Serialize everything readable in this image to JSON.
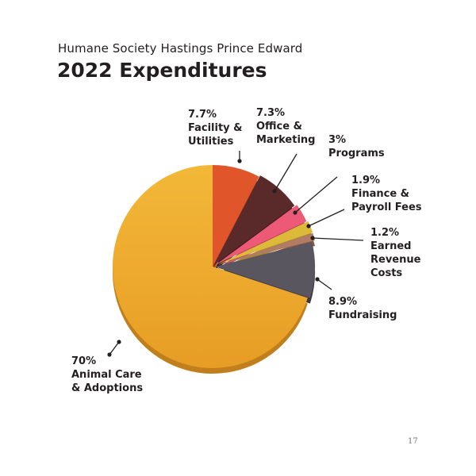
{
  "header": {
    "subtitle": "Humane Society Hastings Prince Edward",
    "title": "2022 Expenditures"
  },
  "page_number": "17",
  "chart_data": {
    "type": "pie",
    "title": "2022 Expenditures",
    "subtitle": "Humane Society Hastings Prince Edward",
    "slices": [
      {
        "label": "Facility & Utilities",
        "percent_label": "7.7%",
        "value": 7.7,
        "color": "#e0562a",
        "side": "#a53a1a"
      },
      {
        "label": "Office & Marketing",
        "percent_label": "7.3%",
        "value": 7.3,
        "color": "#5a2a2b",
        "side": "#3a191a"
      },
      {
        "label": "Programs",
        "percent_label": "3%",
        "value": 3,
        "color": "#ec5a78",
        "side": "#b53e58"
      },
      {
        "label": "Finance & Payroll Fees",
        "percent_label": "1.9%",
        "value": 1.9,
        "color": "#ddb93a",
        "side": "#a88a22"
      },
      {
        "label": "Earned Revenue Costs",
        "percent_label": "1.2%",
        "value": 1.2,
        "color": "#b27b63",
        "side": "#855744"
      },
      {
        "label": "Fundraising",
        "percent_label": "8.9%",
        "value": 8.9,
        "color": "#5a5660",
        "side": "#3b3840"
      },
      {
        "label": "Animal Care & Adoptions",
        "percent_label": "70%",
        "value": 70,
        "color": "#f0b233",
        "side": "#c07f1c"
      }
    ],
    "label_lines": [
      [
        "7.7%",
        "Facility &",
        "Utilities"
      ],
      [
        "7.3%",
        "Office &",
        "Marketing"
      ],
      [
        "3%",
        "Programs"
      ],
      [
        "1.9%",
        "Finance &",
        "Payroll Fees"
      ],
      [
        "1.2%",
        "Earned",
        "Revenue",
        "Costs"
      ],
      [
        "8.9%",
        "Fundraising"
      ],
      [
        "70%",
        "Animal Care",
        "& Adoptions"
      ]
    ]
  }
}
